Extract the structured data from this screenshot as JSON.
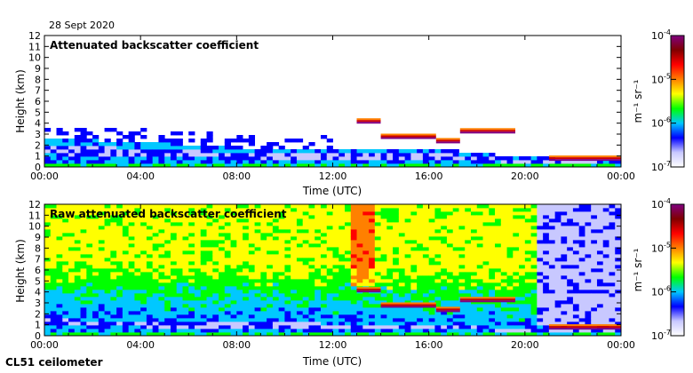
{
  "date_label": "28 Sept 2020",
  "instrument_label": "CL51 ceilometer",
  "colors": {
    "axis": "#000000",
    "background": "#ffffff"
  },
  "chart_data": [
    {
      "type": "heatmap",
      "title": "Attenuated backscatter coefficient",
      "xlabel": "Time (UTC)",
      "ylabel": "Height (km)",
      "x_ticks": [
        "00:00",
        "04:00",
        "08:00",
        "12:00",
        "16:00",
        "20:00",
        "00:00"
      ],
      "y_ticks": [
        "0",
        "1",
        "2",
        "3",
        "4",
        "5",
        "6",
        "7",
        "8",
        "9",
        "10",
        "11",
        "12"
      ],
      "xlim_hours": [
        0,
        24
      ],
      "ylim_km": [
        0,
        12
      ],
      "noise": "low",
      "boundary_layer_top_km": [
        [
          0,
          2.6
        ],
        [
          4,
          2.3
        ],
        [
          8,
          1.8
        ],
        [
          12,
          1.6
        ],
        [
          16,
          1.7
        ],
        [
          20,
          0.9
        ],
        [
          24,
          0.6
        ]
      ],
      "cloud_layers_km": [
        {
          "start_h": 13.0,
          "end_h": 14.0,
          "height_km": 4.2
        },
        {
          "start_h": 14.0,
          "end_h": 16.3,
          "height_km": 2.8
        },
        {
          "start_h": 16.3,
          "end_h": 17.3,
          "height_km": 2.4
        },
        {
          "start_h": 17.3,
          "end_h": 19.6,
          "height_km": 3.3
        },
        {
          "start_h": 21.0,
          "end_h": 24.0,
          "height_km": 0.8
        }
      ]
    },
    {
      "type": "heatmap",
      "title": "Raw attenuated backscatter coefficient",
      "xlabel": "Time (UTC)",
      "ylabel": "Height (km)",
      "x_ticks": [
        "00:00",
        "04:00",
        "08:00",
        "12:00",
        "16:00",
        "20:00",
        "00:00"
      ],
      "y_ticks": [
        "0",
        "1",
        "2",
        "3",
        "4",
        "5",
        "6",
        "7",
        "8",
        "9",
        "10",
        "11",
        "12"
      ],
      "xlim_hours": [
        0,
        24
      ],
      "ylim_km": [
        0,
        12
      ],
      "noise": "high",
      "boundary_layer_top_km": [
        [
          0,
          2.0
        ],
        [
          4,
          1.8
        ],
        [
          8,
          1.6
        ],
        [
          12,
          1.5
        ],
        [
          16,
          1.4
        ],
        [
          20,
          0.9
        ],
        [
          24,
          0.7
        ]
      ],
      "cloud_layers_km": [
        {
          "start_h": 13.0,
          "end_h": 14.0,
          "height_km": 4.2
        },
        {
          "start_h": 14.0,
          "end_h": 16.3,
          "height_km": 2.8
        },
        {
          "start_h": 16.3,
          "end_h": 17.3,
          "height_km": 2.4
        },
        {
          "start_h": 17.3,
          "end_h": 19.6,
          "height_km": 3.3
        },
        {
          "start_h": 21.0,
          "end_h": 24.0,
          "height_km": 0.8
        }
      ]
    }
  ],
  "colorbar": {
    "units_label": "m⁻¹ sr⁻¹",
    "tick_labels": [
      "10-4",
      "10-5",
      "10-6",
      "10-7"
    ],
    "tick_base": "10",
    "tick_exponents": [
      "-4",
      "-5",
      "-6",
      "-7"
    ],
    "colors": [
      "#ffffff",
      "#c8c8ff",
      "#0000ff",
      "#00c8ff",
      "#00ff00",
      "#ffff00",
      "#ff8000",
      "#ff0000",
      "#800000",
      "#800080"
    ]
  }
}
